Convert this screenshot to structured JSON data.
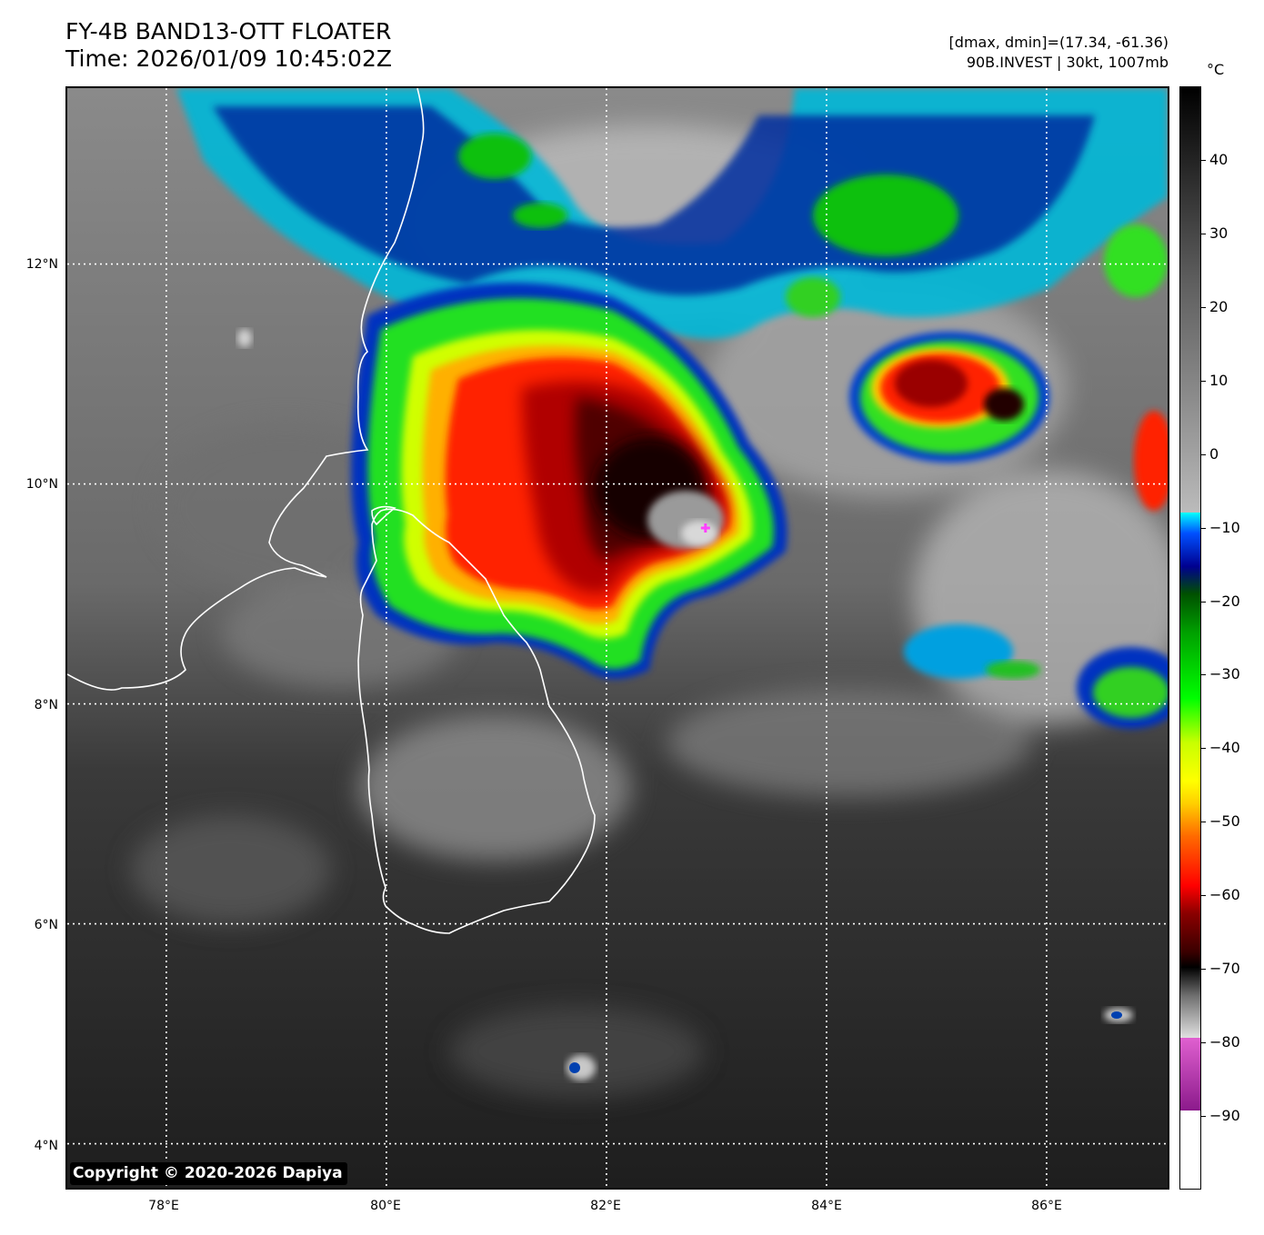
{
  "header": {
    "title_line1": "FY-4B BAND13-OTT FLOATER",
    "title_line2": "Time: 2026/01/09 10:45:02Z",
    "info_line1": "[dmax, dmin]=(17.34, -61.36)",
    "info_line2": "90B.INVEST | 30kt, 1007mb"
  },
  "map": {
    "copyright": "Copyright © 2020-2026 Dapiya",
    "lat_labels": [
      "12°N",
      "10°N",
      "8°N",
      "6°N",
      "4°N"
    ],
    "lon_labels": [
      "78°E",
      "80°E",
      "82°E",
      "84°E",
      "86°E"
    ],
    "extent": {
      "lon_min": 77.1,
      "lon_max": 87.1,
      "lat_min": 3.6,
      "lat_max": 13.6
    },
    "gridlines": "dotted white",
    "coastline_color": "#ffffff",
    "center_marker_color": "#ff40ff",
    "center_marker": {
      "lon": 82.9,
      "lat": 9.6
    }
  },
  "colorbar": {
    "unit": "°C",
    "range": [
      -100,
      50
    ],
    "tick_labels": [
      "40",
      "30",
      "20",
      "10",
      "0",
      "−10",
      "−20",
      "−30",
      "−40",
      "−50",
      "−60",
      "−70",
      "−80",
      "−90"
    ],
    "tick_values": [
      40,
      30,
      20,
      10,
      0,
      -10,
      -20,
      -30,
      -40,
      -50,
      -60,
      -70,
      -80,
      -90
    ]
  }
}
